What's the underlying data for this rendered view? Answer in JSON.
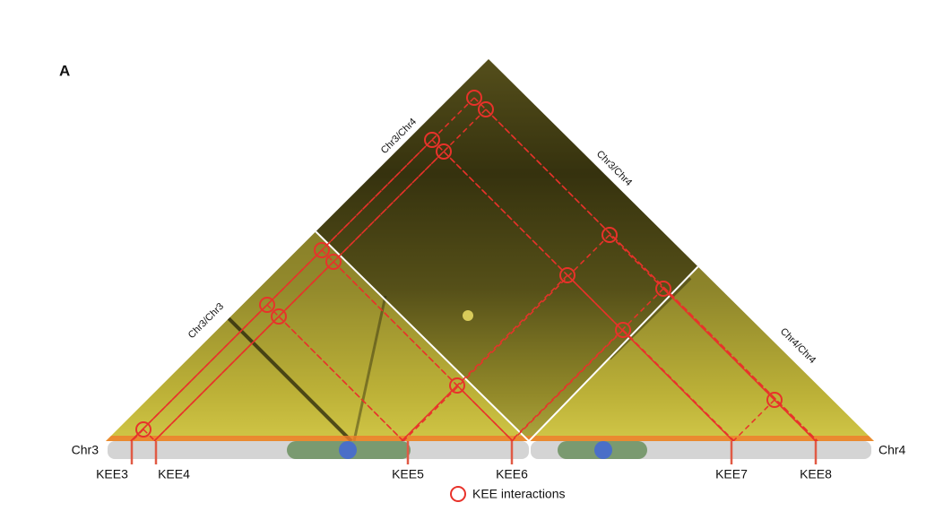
{
  "panel_label": "A",
  "regions": [
    "Chr3/Chr3",
    "Chr3/Chr4",
    "Chr3/Chr4",
    "Chr4/Chr4"
  ],
  "chromosomes": [
    "Chr3",
    "Chr4"
  ],
  "kee_loci": [
    "KEE3",
    "KEE4",
    "KEE5",
    "KEE6",
    "KEE7",
    "KEE8"
  ],
  "legend": "KEE interactions"
}
